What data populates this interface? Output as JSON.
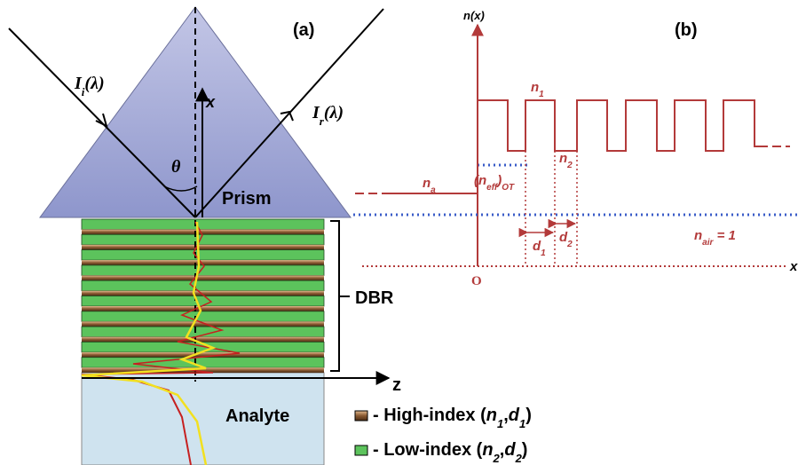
{
  "panel_a": {
    "label": "(a)",
    "incident": {
      "base": "I",
      "sub": "i",
      "rest": "(λ)"
    },
    "reflected": {
      "base": "I",
      "sub": "r",
      "rest": "(λ)"
    },
    "axis_x": "x",
    "angle": "θ",
    "prism": "Prism",
    "dbr": "DBR",
    "axis_z": "z",
    "analyte": "Analyte",
    "legend": [
      [
        "- High-index (",
        "n",
        "1",
        ",",
        "d",
        "1",
        ")"
      ],
      [
        "- Low-index (",
        "n",
        "2",
        ",",
        "d",
        "2",
        ")"
      ]
    ]
  },
  "panel_b": {
    "label": "(b)",
    "y_axis": "n(x)",
    "n1": {
      "base": "n",
      "sub": "1"
    },
    "n2": {
      "base": "n",
      "sub": "2"
    },
    "na": {
      "base": "n",
      "sub": "a"
    },
    "n_eff": {
      "open": "(n",
      "sub1": "eff",
      "close": ")",
      "sub2": "OT"
    },
    "d1": {
      "base": "d",
      "sub": "1"
    },
    "d2": {
      "base": "d",
      "sub": "2"
    },
    "n_air": {
      "base": "n",
      "sub": "air",
      "rest": " = 1"
    },
    "origin": "O",
    "x_axis": "x"
  }
}
